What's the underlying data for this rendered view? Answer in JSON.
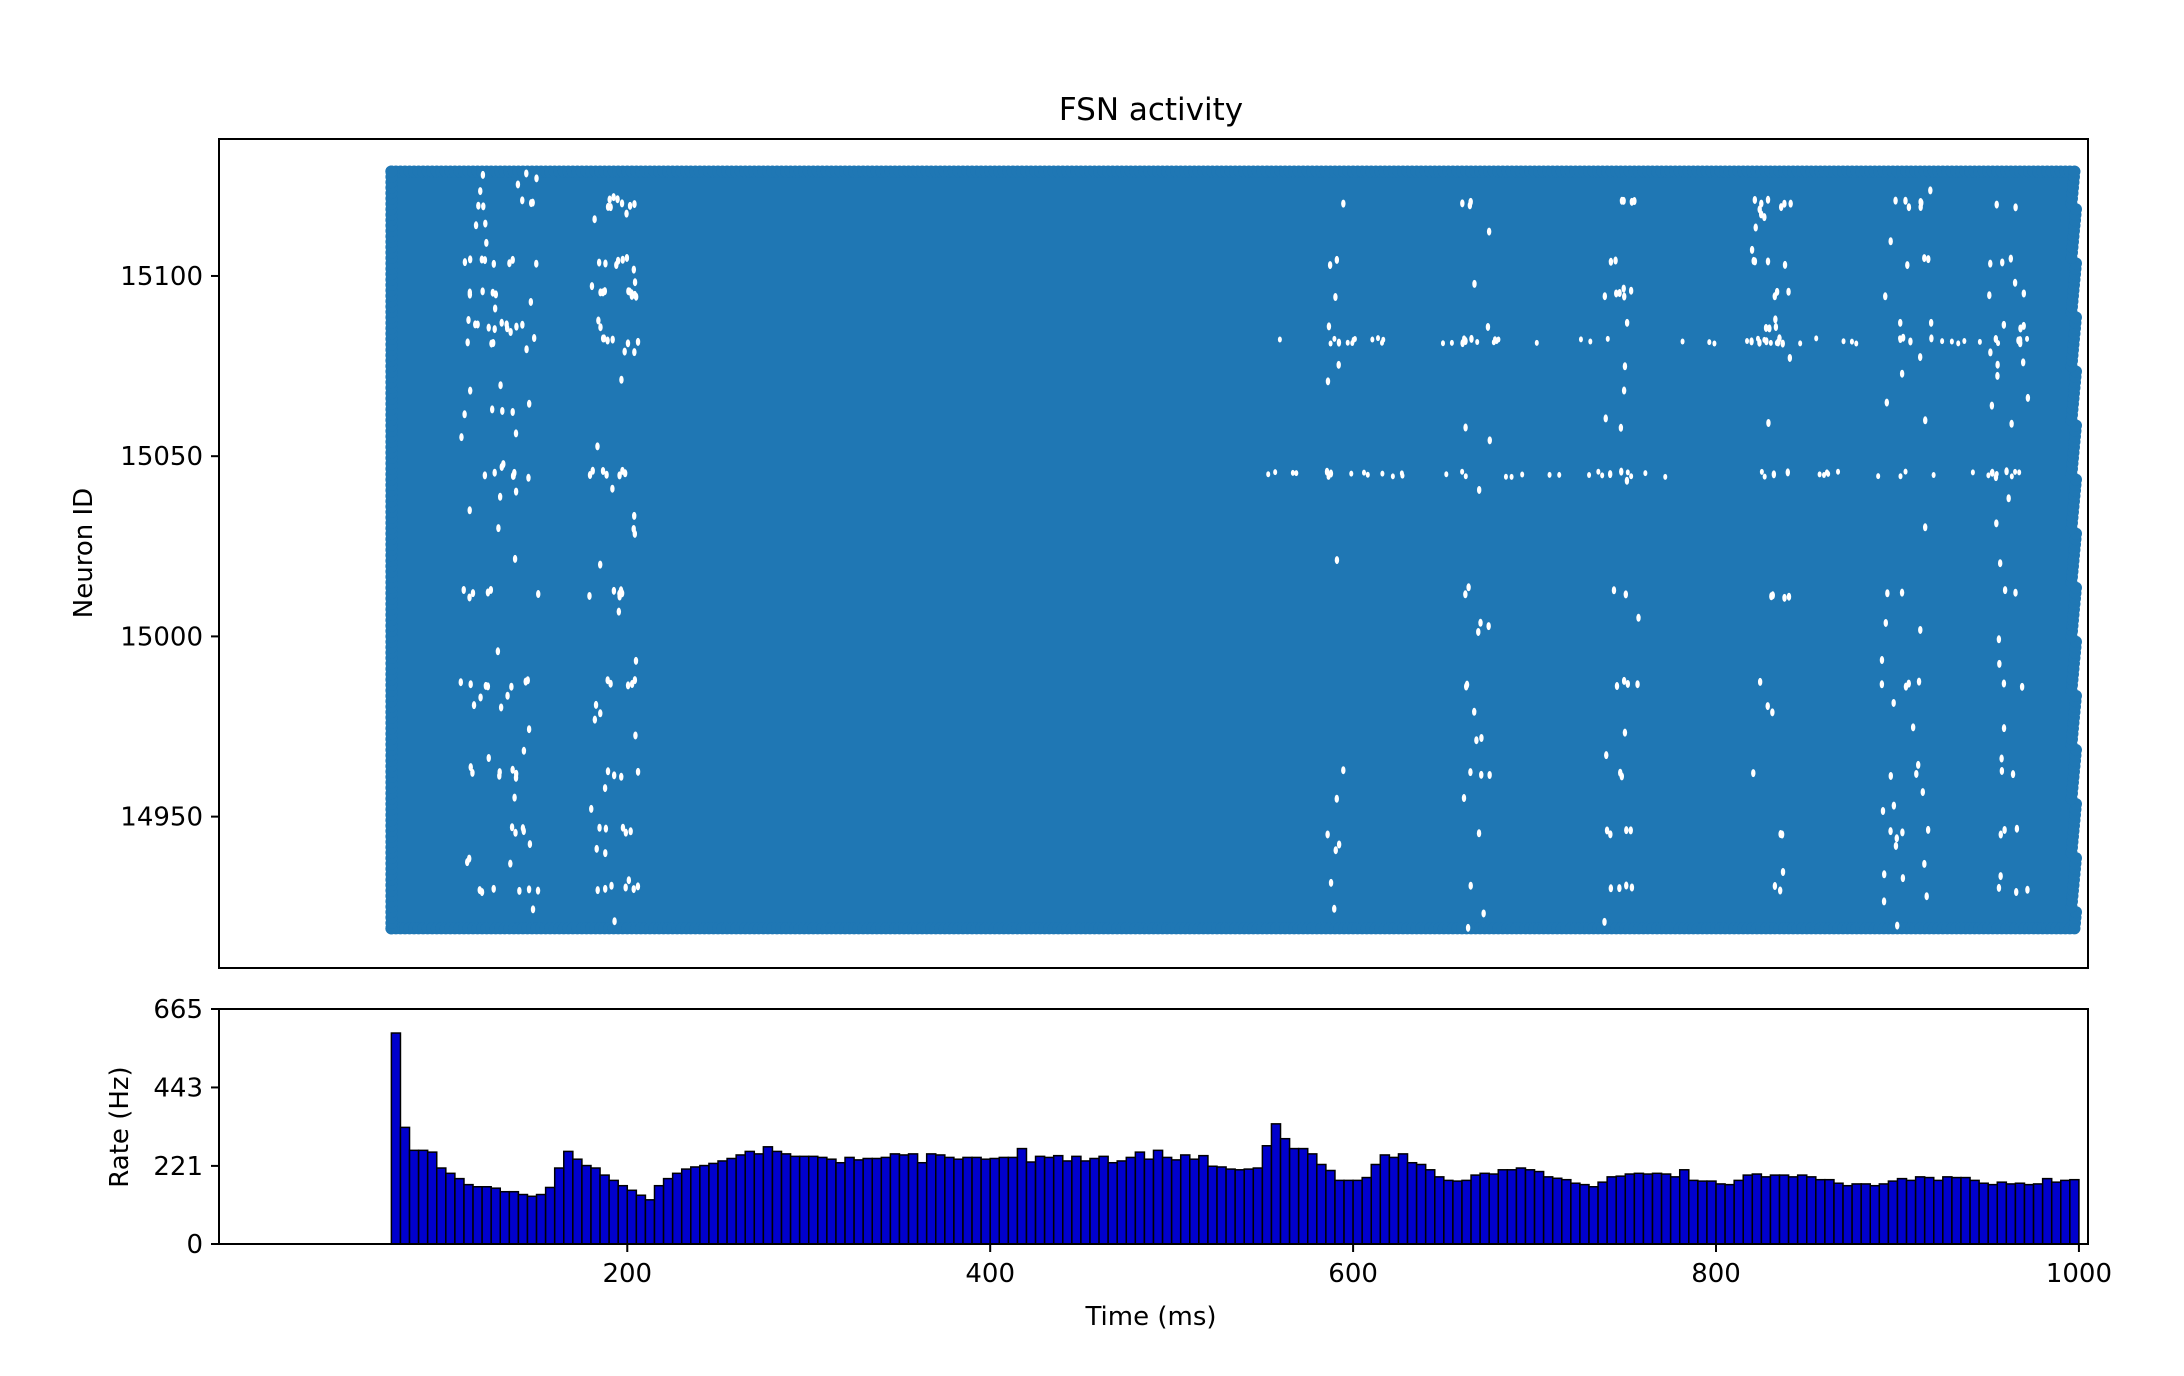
{
  "chart_data": [
    {
      "type": "scatter",
      "title": "FSN activity",
      "xlabel": "",
      "ylabel": "Neuron ID",
      "xlim": [
        -25,
        1005
      ],
      "ylim": [
        14908,
        15138
      ],
      "yticks": [
        14950,
        15000,
        15050,
        15100
      ],
      "ytick_labels": [
        "14950",
        "15000",
        "15050",
        "15100"
      ],
      "neuron_id_range": [
        14919,
        15129
      ],
      "spike_time_range": [
        70,
        997
      ],
      "color": "#1f77b4",
      "pattern": "Dense raster: nearly every neuron spikes in nearly every time bin; sparse gaps appear near 125-145 ms and 185-200 ms and faintly at regular neuron rows",
      "grid": false,
      "legend": "none"
    },
    {
      "type": "bar",
      "title": "",
      "xlabel": "Time (ms)",
      "ylabel": "Rate (Hz)",
      "xlim": [
        -25,
        1005
      ],
      "ylim": [
        0,
        665
      ],
      "yticks": [
        0,
        221,
        443,
        665
      ],
      "ytick_labels": [
        "0",
        "221",
        "443",
        "665"
      ],
      "xticks": [
        200,
        400,
        600,
        800,
        1000
      ],
      "xtick_labels": [
        "200",
        "400",
        "600",
        "800",
        "1000"
      ],
      "bin_start": 70,
      "bin_width": 5,
      "bar_color": "#0000cd",
      "edge_color": "#000000",
      "values": [
        597,
        330,
        265,
        265,
        260,
        215,
        200,
        185,
        168,
        162,
        162,
        158,
        148,
        148,
        140,
        135,
        140,
        160,
        215,
        262,
        240,
        222,
        215,
        195,
        180,
        165,
        152,
        138,
        125,
        165,
        185,
        200,
        212,
        218,
        222,
        228,
        235,
        242,
        252,
        262,
        255,
        275,
        262,
        255,
        248,
        248,
        248,
        245,
        240,
        230,
        245,
        238,
        242,
        242,
        245,
        255,
        252,
        255,
        230,
        255,
        252,
        245,
        240,
        245,
        245,
        240,
        242,
        245,
        245,
        270,
        232,
        248,
        245,
        250,
        235,
        248,
        235,
        242,
        248,
        230,
        235,
        245,
        260,
        240,
        265,
        245,
        238,
        252,
        240,
        250,
        220,
        218,
        212,
        210,
        212,
        215,
        278,
        340,
        298,
        270,
        270,
        255,
        225,
        208,
        180,
        180,
        180,
        188,
        225,
        252,
        245,
        255,
        230,
        225,
        210,
        190,
        180,
        178,
        180,
        195,
        200,
        198,
        210,
        210,
        215,
        210,
        205,
        190,
        186,
        182,
        172,
        168,
        162,
        175,
        190,
        192,
        198,
        200,
        198,
        200,
        198,
        190,
        210,
        180,
        178,
        178,
        170,
        168,
        180,
        195,
        198,
        190,
        195,
        195,
        190,
        195,
        190,
        182,
        182,
        172,
        165,
        170,
        170,
        165,
        170,
        178,
        185,
        180,
        190,
        188,
        180,
        190,
        188,
        188,
        180,
        172,
        168,
        175,
        170,
        172,
        168,
        170,
        185,
        175,
        180,
        182
      ]
    }
  ]
}
